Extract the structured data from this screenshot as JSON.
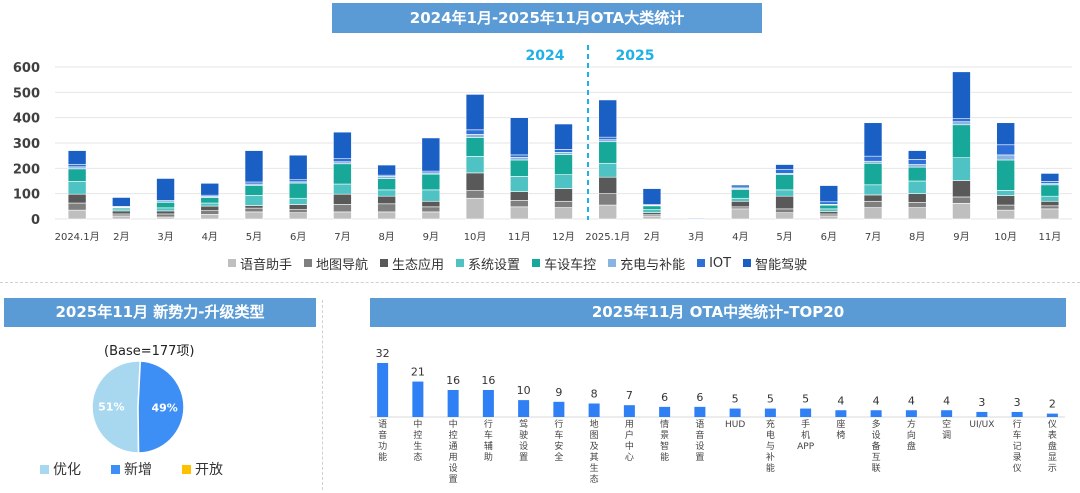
{
  "main_chart": {
    "title": "2024年1月-2025年11月OTA大类统计",
    "year_labels": [
      "2024",
      "2025"
    ],
    "colors": [
      "#bfbfbf",
      "#7f7f7f",
      "#595959",
      "#4fc3c3",
      "#17a89a",
      "#8ab4e0",
      "#2e6fd8",
      "#1a5fc4"
    ],
    "chart_data": {
      "type": "bar",
      "stacked": true,
      "categories": [
        "2024.1月",
        "2月",
        "3月",
        "4月",
        "5月",
        "6月",
        "7月",
        "8月",
        "9月",
        "10月",
        "11月",
        "12月",
        "2025.1月",
        "2月",
        "3月",
        "4月",
        "5月",
        "6月",
        "7月",
        "8月",
        "9月",
        "10月",
        "11月"
      ],
      "ylim": [
        0,
        600
      ],
      "yticks": [
        0,
        100,
        200,
        300,
        400,
        500,
        600
      ],
      "series": [
        {
          "name": "语音助手",
          "values": [
            35,
            12,
            8,
            18,
            28,
            25,
            28,
            28,
            28,
            82,
            48,
            45,
            55,
            12,
            0,
            40,
            25,
            12,
            45,
            45,
            62,
            35,
            40
          ]
        },
        {
          "name": "地图导航",
          "values": [
            28,
            8,
            12,
            15,
            15,
            12,
            30,
            32,
            20,
            30,
            25,
            25,
            45,
            5,
            0,
            8,
            15,
            8,
            25,
            20,
            25,
            20,
            12
          ]
        },
        {
          "name": "生态应用",
          "values": [
            35,
            12,
            12,
            18,
            10,
            20,
            40,
            30,
            22,
            70,
            35,
            50,
            65,
            8,
            0,
            22,
            50,
            10,
            25,
            35,
            65,
            38,
            18
          ]
        },
        {
          "name": "系统设置",
          "values": [
            50,
            8,
            12,
            12,
            40,
            25,
            40,
            25,
            45,
            65,
            60,
            55,
            55,
            12,
            0,
            12,
            25,
            10,
            40,
            50,
            90,
            20,
            20
          ]
        },
        {
          "name": "车设车控",
          "values": [
            50,
            5,
            22,
            22,
            40,
            60,
            80,
            45,
            62,
            75,
            65,
            80,
            85,
            15,
            0,
            35,
            60,
            15,
            85,
            55,
            130,
            120,
            45
          ]
        },
        {
          "name": "充电与补能",
          "values": [
            8,
            2,
            2,
            4,
            5,
            5,
            8,
            8,
            5,
            12,
            10,
            8,
            8,
            2,
            0,
            4,
            5,
            3,
            8,
            10,
            12,
            20,
            5
          ]
        },
        {
          "name": "IOT",
          "values": [
            10,
            3,
            5,
            5,
            8,
            8,
            12,
            5,
            7,
            18,
            10,
            12,
            10,
            3,
            0,
            5,
            15,
            10,
            20,
            20,
            12,
            40,
            8
          ]
        },
        {
          "name": "智能驾驶",
          "values": [
            54,
            35,
            87,
            47,
            124,
            97,
            105,
            40,
            131,
            140,
            147,
            100,
            147,
            63,
            3,
            8,
            20,
            64,
            132,
            35,
            185,
            87,
            32
          ]
        }
      ]
    }
  },
  "pie_chart": {
    "title": "2025年11月 新势力-升级类型",
    "base_label": "(Base=177项)",
    "chart_data": {
      "type": "pie",
      "labels": [
        "优化",
        "新增",
        "开放"
      ],
      "values": [
        51,
        49,
        0
      ],
      "value_labels": [
        "51%",
        "49%",
        ""
      ],
      "colors": [
        "#a8d8f0",
        "#3d8ef5",
        "#ffc000"
      ]
    }
  },
  "top20_chart": {
    "title": "2025年11月 OTA中类统计-TOP20",
    "bar_color": "#2f7ff5",
    "chart_data": {
      "type": "bar",
      "categories": [
        "语音功能",
        "中控生态",
        "中控通用设置",
        "行车辅助",
        "驾驶设置",
        "行车安全",
        "地图及其生态",
        "用户中心",
        "情景智能",
        "语音设置",
        "HUD",
        "充电与补能",
        "手机APP",
        "座椅",
        "多设备互联",
        "方向盘",
        "空调",
        "UI/UX",
        "行车记录仪",
        "仪表盘显示"
      ],
      "values": [
        32,
        21,
        16,
        16,
        10,
        9,
        8,
        7,
        6,
        6,
        5,
        5,
        5,
        4,
        4,
        4,
        4,
        3,
        3,
        2
      ]
    }
  }
}
